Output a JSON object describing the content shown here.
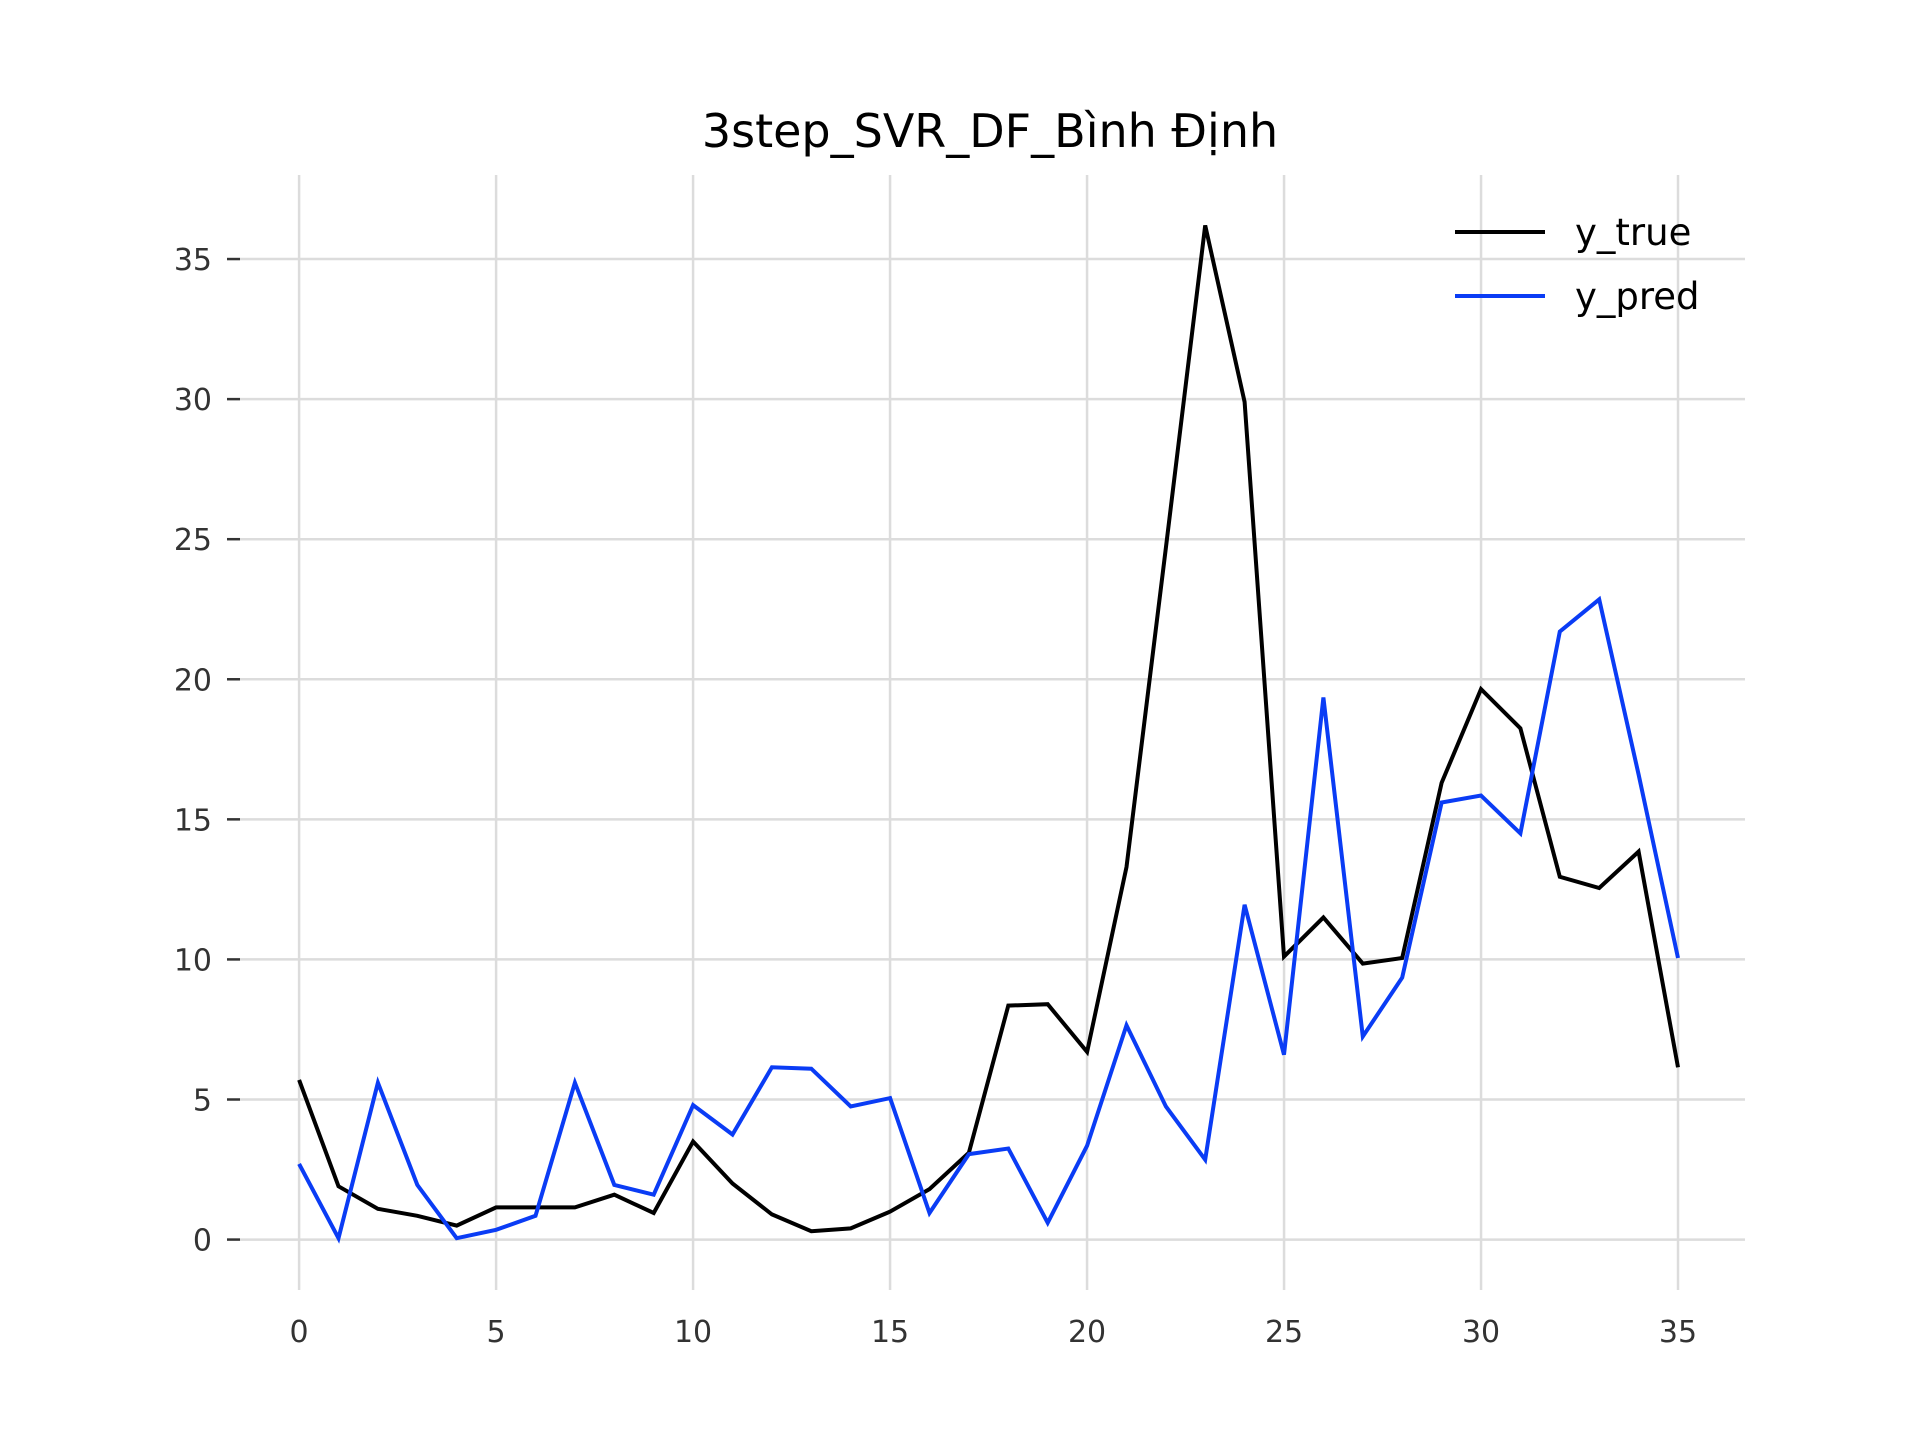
{
  "chart_data": {
    "type": "line",
    "title": "3step_SVR_DF_Bình Định",
    "xlabel": "",
    "ylabel": "",
    "xlim": [
      -1.5,
      36.7
    ],
    "ylim": [
      -1.8,
      38.0
    ],
    "xticks": [
      0,
      5,
      10,
      15,
      20,
      25,
      30,
      35
    ],
    "yticks": [
      0,
      5,
      10,
      15,
      20,
      25,
      30,
      35
    ],
    "grid": true,
    "legend_position": "top-right",
    "x": [
      0,
      1,
      2,
      3,
      4,
      5,
      6,
      7,
      8,
      9,
      10,
      11,
      12,
      13,
      14,
      15,
      16,
      17,
      18,
      19,
      20,
      21,
      22,
      23,
      24,
      25,
      26,
      27,
      28,
      29,
      30,
      31,
      32,
      33,
      34,
      35
    ],
    "series": [
      {
        "name": "y_true",
        "color": "#000000",
        "values": [
          5.7,
          1.9,
          1.1,
          0.85,
          0.5,
          1.15,
          1.15,
          1.15,
          1.6,
          0.95,
          3.5,
          2.0,
          0.9,
          0.3,
          0.4,
          1.0,
          1.8,
          3.1,
          8.35,
          8.4,
          6.7,
          13.3,
          24.7,
          36.2,
          29.9,
          10.1,
          11.5,
          9.85,
          10.05,
          16.3,
          19.65,
          18.25,
          12.95,
          12.55,
          13.85,
          6.15
        ]
      },
      {
        "name": "y_pred",
        "color": "#0a3cf5",
        "values": [
          2.7,
          0.05,
          5.6,
          1.95,
          0.05,
          0.35,
          0.85,
          5.6,
          1.95,
          1.6,
          4.8,
          3.75,
          6.15,
          6.1,
          4.75,
          5.05,
          0.95,
          3.05,
          3.25,
          0.6,
          3.35,
          7.65,
          4.75,
          2.85,
          11.95,
          6.6,
          19.35,
          7.25,
          9.35,
          15.6,
          15.85,
          14.5,
          21.7,
          22.85,
          16.6,
          10.05
        ]
      }
    ]
  }
}
